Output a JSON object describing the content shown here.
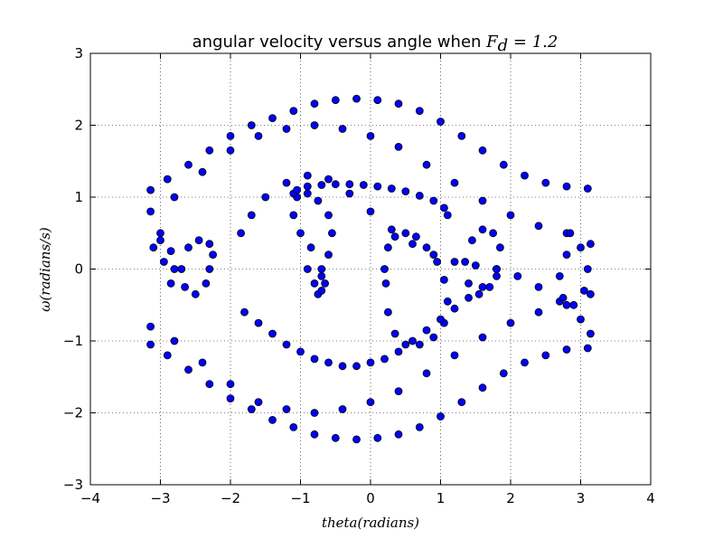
{
  "chart_data": {
    "type": "scatter",
    "title_prefix": "angular velocity versus angle when ",
    "title_math": "F",
    "title_math_sub": "d",
    "title_math_suffix": " = 1.2",
    "xlabel": "theta(radians)",
    "ylabel": "ω(radians/s)",
    "xlim": [
      -4,
      4
    ],
    "ylim": [
      -3,
      3
    ],
    "xticks": [
      -4,
      -3,
      -2,
      -1,
      0,
      1,
      2,
      3,
      4
    ],
    "xtick_labels": [
      "−4",
      "−3",
      "−2",
      "−1",
      "0",
      "1",
      "2",
      "3",
      "4"
    ],
    "yticks": [
      -3,
      -2,
      -1,
      0,
      1,
      2,
      3
    ],
    "ytick_labels": [
      "−3",
      "−2",
      "−1",
      "0",
      "1",
      "2",
      "3"
    ],
    "grid": true,
    "marker_fill": "#0000ff",
    "marker_edge": "#000000",
    "series": [
      {
        "description": "representative sample points of driven pendulum trajectory",
        "x": [
          0.2,
          0.25,
          0.35,
          0.5,
          0.65,
          0.8,
          0.95,
          1.05,
          1.1,
          1.05,
          0.9,
          0.7,
          0.5,
          0.35,
          0.25,
          0.22,
          -0.75,
          -0.7,
          -0.6,
          -0.55,
          -0.6,
          -0.75,
          -0.9,
          -1.05,
          -1.1,
          -1.0,
          -0.85,
          -0.7,
          -0.65,
          -0.7,
          -0.8,
          -0.9,
          -2.3,
          -2.25,
          -2.3,
          -2.45,
          -2.6,
          -2.7,
          -2.65,
          -2.5,
          -2.35,
          -1.85,
          -1.7,
          -1.5,
          -1.2,
          -0.9,
          -0.6,
          -0.3,
          0.0,
          0.3,
          0.6,
          0.9,
          1.2,
          1.5,
          1.8,
          2.1,
          2.4,
          2.7,
          3.0,
          3.14,
          -3.14,
          -2.9,
          -2.6,
          -2.3,
          -2.0,
          -1.7,
          -1.4,
          -1.1,
          -0.8,
          -0.5,
          -0.2,
          0.1,
          0.4,
          0.7,
          1.0,
          1.3,
          1.6,
          1.9,
          2.2,
          2.5,
          2.8,
          3.1,
          -3.14,
          -2.9,
          -2.6,
          -2.3,
          -2.0,
          -1.7,
          -1.4,
          -1.1,
          -0.8,
          -0.5,
          -0.2,
          0.1,
          0.4,
          0.7,
          1.0,
          1.3,
          1.6,
          1.9,
          2.2,
          2.5,
          2.8,
          3.1,
          -3.14,
          -2.8,
          -2.4,
          -2.0,
          -1.6,
          -1.2,
          -0.8,
          -0.4,
          0.0,
          0.4,
          0.8,
          1.2,
          1.6,
          2.0,
          2.4,
          2.8,
          3.14,
          -3.14,
          -2.8,
          -2.4,
          -2.0,
          -1.6,
          -1.2,
          -0.8,
          -0.4,
          0.0,
          0.4,
          0.8,
          1.2,
          1.6,
          2.0,
          2.4,
          2.8,
          3.14,
          -1.8,
          -1.6,
          -1.4,
          -1.2,
          -1.0,
          -0.8,
          -0.6,
          -0.4,
          -0.2,
          0.0,
          0.2,
          0.4,
          0.6,
          0.8,
          1.0,
          1.2,
          1.4,
          1.6,
          1.8,
          -1.1,
          -1.05,
          -0.9,
          -0.7,
          -0.5,
          -0.3,
          -0.1,
          0.1,
          0.3,
          0.5,
          0.7,
          0.9,
          1.05,
          1.1,
          1.8,
          1.85,
          1.75,
          1.6,
          1.45,
          1.35,
          1.4,
          1.55,
          1.7,
          2.85,
          3.0,
          3.1,
          3.05,
          2.9,
          2.75,
          2.7,
          2.8,
          -3.0,
          -2.95,
          -2.85,
          -2.8,
          -2.85,
          -3.0,
          -3.1
        ],
        "y": [
          0.0,
          0.3,
          0.45,
          0.5,
          0.45,
          0.3,
          0.1,
          -0.15,
          -0.45,
          -0.75,
          -0.95,
          -1.05,
          -1.05,
          -0.9,
          -0.6,
          -0.2,
          -0.35,
          -0.1,
          0.2,
          0.5,
          0.75,
          0.95,
          1.05,
          1.0,
          0.75,
          0.5,
          0.3,
          0.0,
          -0.2,
          -0.3,
          -0.2,
          0.0,
          0.0,
          0.2,
          0.35,
          0.4,
          0.3,
          0.0,
          -0.25,
          -0.35,
          -0.2,
          0.5,
          0.75,
          1.0,
          1.2,
          1.3,
          1.25,
          1.05,
          0.8,
          0.55,
          0.35,
          0.2,
          0.1,
          0.05,
          0.0,
          -0.1,
          -0.25,
          -0.45,
          -0.7,
          -0.9,
          1.1,
          1.25,
          1.45,
          1.65,
          1.85,
          2.0,
          2.1,
          2.2,
          2.3,
          2.35,
          2.37,
          2.35,
          2.3,
          2.2,
          2.05,
          1.85,
          1.65,
          1.45,
          1.3,
          1.2,
          1.15,
          1.12,
          -1.05,
          -1.2,
          -1.4,
          -1.6,
          -1.8,
          -1.95,
          -2.1,
          -2.2,
          -2.3,
          -2.35,
          -2.37,
          -2.35,
          -2.3,
          -2.2,
          -2.05,
          -1.85,
          -1.65,
          -1.45,
          -1.3,
          -1.2,
          -1.12,
          -1.1,
          0.8,
          1.0,
          1.35,
          1.65,
          1.85,
          1.95,
          2.0,
          1.95,
          1.85,
          1.7,
          1.45,
          1.2,
          0.95,
          0.75,
          0.6,
          0.5,
          0.35,
          -0.8,
          -1.0,
          -1.3,
          -1.6,
          -1.85,
          -1.95,
          -2.0,
          -1.95,
          -1.85,
          -1.7,
          -1.45,
          -1.2,
          -0.95,
          -0.75,
          -0.6,
          -0.5,
          -0.35,
          -0.6,
          -0.75,
          -0.9,
          -1.05,
          -1.15,
          -1.25,
          -1.3,
          -1.35,
          -1.35,
          -1.3,
          -1.25,
          -1.15,
          -1.0,
          -0.85,
          -0.7,
          -0.55,
          -0.4,
          -0.25,
          -0.1,
          1.05,
          1.1,
          1.15,
          1.17,
          1.18,
          1.18,
          1.17,
          1.15,
          1.12,
          1.08,
          1.02,
          0.95,
          0.85,
          0.75,
          0.0,
          0.3,
          0.5,
          0.55,
          0.4,
          0.1,
          -0.2,
          -0.35,
          -0.25,
          0.5,
          0.3,
          0.0,
          -0.3,
          -0.5,
          -0.4,
          -0.1,
          0.2,
          0.4,
          0.1,
          -0.2,
          0.0,
          0.25,
          0.5,
          0.3
        ]
      }
    ]
  }
}
